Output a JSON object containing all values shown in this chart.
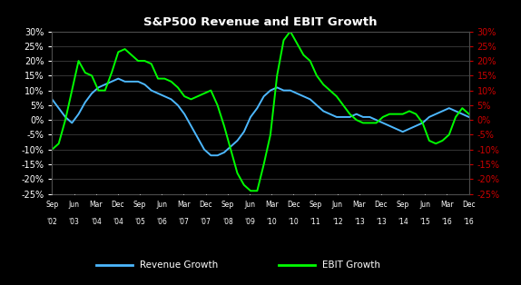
{
  "title": "S&P500 Revenue and EBIT Growth",
  "background_color": "#000000",
  "grid_color": "#4a4a4a",
  "title_color": "#ffffff",
  "left_tick_color": "#ffffff",
  "right_tick_color": "#cc0000",
  "ylim": [
    -0.25,
    0.3
  ],
  "yticks": [
    -0.25,
    -0.2,
    -0.15,
    -0.1,
    -0.05,
    0.0,
    0.05,
    0.1,
    0.15,
    0.2,
    0.25,
    0.3
  ],
  "revenue_color": "#4db8ff",
  "ebit_color": "#00ff00",
  "revenue_label": "Revenue Growth",
  "ebit_label": "EBIT Growth",
  "x_tick_labels_top": [
    "Sep",
    "Jun",
    "Mar",
    "Dec",
    "Sep",
    "Jun",
    "Mar",
    "Dec",
    "Sep",
    "Jun",
    "Mar",
    "Dec",
    "Sep",
    "Jun",
    "Mar",
    "Dec",
    "Sep",
    "Jun",
    "Mar",
    "Dec"
  ],
  "x_tick_labels_bot": [
    "'02",
    "'03",
    "'04",
    "'04",
    "'05",
    "'06",
    "'07",
    "'07",
    "'08",
    "'09",
    "'10",
    "'10",
    "'11",
    "'12",
    "'13",
    "'13",
    "'14",
    "'15",
    "'16",
    "'16"
  ],
  "revenue_data": [
    0.07,
    0.04,
    0.01,
    -0.01,
    0.02,
    0.06,
    0.09,
    0.11,
    0.12,
    0.13,
    0.14,
    0.13,
    0.13,
    0.13,
    0.12,
    0.1,
    0.09,
    0.08,
    0.07,
    0.05,
    0.02,
    -0.02,
    -0.06,
    -0.1,
    -0.12,
    -0.12,
    -0.11,
    -0.09,
    -0.07,
    -0.04,
    0.01,
    0.04,
    0.08,
    0.1,
    0.11,
    0.1,
    0.1,
    0.09,
    0.08,
    0.07,
    0.05,
    0.03,
    0.02,
    0.01,
    0.01,
    0.01,
    0.02,
    0.01,
    0.01,
    0.0,
    -0.01,
    -0.02,
    -0.03,
    -0.04,
    -0.03,
    -0.02,
    -0.01,
    0.01,
    0.02,
    0.03,
    0.04,
    0.03,
    0.02,
    0.01
  ],
  "ebit_data": [
    -0.1,
    -0.08,
    0.0,
    0.1,
    0.2,
    0.16,
    0.15,
    0.1,
    0.1,
    0.16,
    0.23,
    0.24,
    0.22,
    0.2,
    0.2,
    0.19,
    0.14,
    0.14,
    0.13,
    0.11,
    0.08,
    0.07,
    0.08,
    0.09,
    0.1,
    0.05,
    -0.02,
    -0.1,
    -0.18,
    -0.22,
    -0.24,
    -0.24,
    -0.15,
    -0.05,
    0.15,
    0.27,
    0.3,
    0.26,
    0.22,
    0.2,
    0.15,
    0.12,
    0.1,
    0.08,
    0.05,
    0.02,
    0.0,
    -0.01,
    -0.01,
    -0.01,
    0.01,
    0.02,
    0.02,
    0.02,
    0.03,
    0.02,
    -0.01,
    -0.07,
    -0.08,
    -0.07,
    -0.05,
    0.01,
    0.04,
    0.02
  ]
}
